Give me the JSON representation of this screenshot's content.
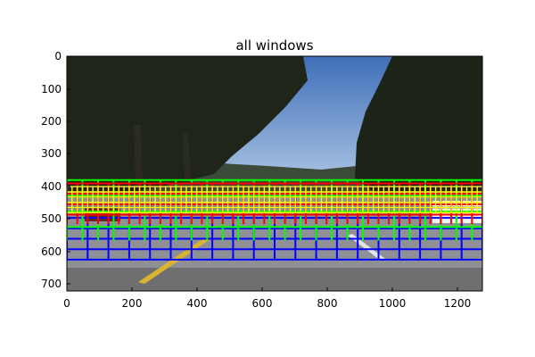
{
  "figure": {
    "title": "all windows",
    "x_ticks": [
      "0",
      "200",
      "400",
      "600",
      "800",
      "1000",
      "1200"
    ],
    "y_ticks": [
      "0",
      "100",
      "200",
      "300",
      "400",
      "500",
      "600",
      "700"
    ]
  },
  "image": {
    "width": 1280,
    "height": 720,
    "sky_color": "#5b86c4",
    "road_color": "#8e8e92",
    "tree_color": "#1e2418"
  },
  "chart_data": {
    "type": "image-with-window-overlay",
    "title": "all windows",
    "xlim": [
      0,
      1280
    ],
    "ylim": [
      720,
      0
    ],
    "window_grids": [
      {
        "color": "#0000ff",
        "x_start": 0,
        "x_end": 1280,
        "step_x": 64,
        "y_top": 400,
        "y_bottom": 625,
        "row_step": 32
      },
      {
        "color": "#00ff00",
        "x_start": 0,
        "x_end": 1280,
        "step_x": 48,
        "y_top": 380,
        "y_bottom": 565,
        "row_step": 48
      },
      {
        "color": "#ff0000",
        "x_start": 0,
        "x_end": 1280,
        "step_x": 32,
        "y_top": 390,
        "y_bottom": 515,
        "row_step": 32
      },
      {
        "color": "#ffff00",
        "x_start": 0,
        "x_end": 1280,
        "step_x": 16,
        "y_top": 400,
        "y_bottom": 480,
        "row_step": 16
      }
    ]
  }
}
